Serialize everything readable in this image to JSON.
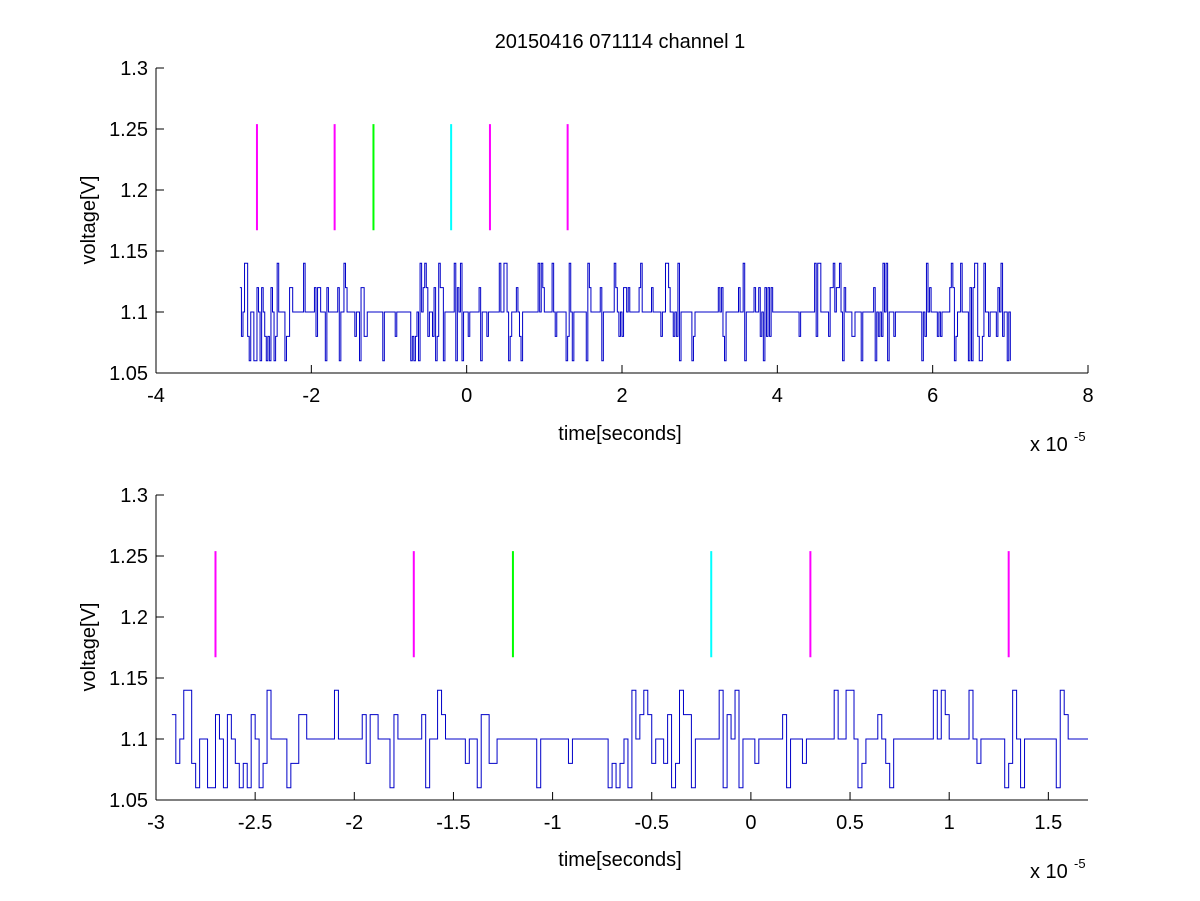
{
  "chart_data": [
    {
      "type": "line",
      "title": "20150416 071114 channel 1",
      "xlabel": "time[seconds]",
      "ylabel": "voltage[V]",
      "x_exponent_label": "x 10",
      "x_exponent_power": "-5",
      "xlim": [
        -4,
        8
      ],
      "ylim": [
        1.05,
        1.3
      ],
      "x_scale": 1e-05,
      "xticks": [
        -4,
        -2,
        0,
        2,
        4,
        6,
        8
      ],
      "xtick_labels": [
        "-4",
        "-2",
        "0",
        "2",
        "4",
        "6",
        "8"
      ],
      "yticks": [
        1.05,
        1.1,
        1.15,
        1.2,
        1.25,
        1.3
      ],
      "ytick_labels": [
        "1.05",
        "1.1",
        "1.15",
        "1.2",
        "1.25",
        "1.3"
      ],
      "grid": false,
      "signal": {
        "color": "#0000c8",
        "t_start": -2.92,
        "t_end": 7.0,
        "sample_step": 0.02,
        "levels": [
          1.06,
          1.08,
          1.1,
          1.12,
          1.14
        ],
        "baseline": 1.1
      },
      "markers": [
        {
          "x": -2.7,
          "color": "#ff00ff",
          "y_range": [
            1.167,
            1.254
          ]
        },
        {
          "x": -1.7,
          "color": "#ff00ff",
          "y_range": [
            1.167,
            1.254
          ]
        },
        {
          "x": -1.2,
          "color": "#00ff00",
          "y_range": [
            1.167,
            1.254
          ]
        },
        {
          "x": -0.2,
          "color": "#00ffff",
          "y_range": [
            1.167,
            1.254
          ]
        },
        {
          "x": 0.3,
          "color": "#ff00ff",
          "y_range": [
            1.167,
            1.254
          ]
        },
        {
          "x": 1.3,
          "color": "#ff00ff",
          "y_range": [
            1.167,
            1.254
          ]
        }
      ]
    },
    {
      "type": "line",
      "title": "",
      "xlabel": "time[seconds]",
      "ylabel": "voltage[V]",
      "x_exponent_label": "x 10",
      "x_exponent_power": "-5",
      "xlim": [
        -3.0,
        1.7
      ],
      "ylim": [
        1.05,
        1.3
      ],
      "x_scale": 1e-05,
      "xticks": [
        -3,
        -2.5,
        -2,
        -1.5,
        -1,
        -0.5,
        0,
        0.5,
        1,
        1.5
      ],
      "xtick_labels": [
        "-3",
        "-2.5",
        "-2",
        "-1.5",
        "-1",
        "-0.5",
        "0",
        "0.5",
        "1",
        "1.5"
      ],
      "yticks": [
        1.05,
        1.1,
        1.15,
        1.2,
        1.25,
        1.3
      ],
      "ytick_labels": [
        "1.05",
        "1.1",
        "1.15",
        "1.2",
        "1.25",
        "1.3"
      ],
      "grid": false,
      "signal": {
        "color": "#0000c8",
        "t_start": -2.92,
        "t_end": 1.7,
        "sample_step": 0.02,
        "levels": [
          1.06,
          1.08,
          1.1,
          1.12,
          1.14
        ],
        "baseline": 1.1
      },
      "markers": [
        {
          "x": -2.7,
          "color": "#ff00ff",
          "y_range": [
            1.167,
            1.254
          ]
        },
        {
          "x": -1.7,
          "color": "#ff00ff",
          "y_range": [
            1.167,
            1.254
          ]
        },
        {
          "x": -1.2,
          "color": "#00ff00",
          "y_range": [
            1.167,
            1.254
          ]
        },
        {
          "x": -0.2,
          "color": "#00ffff",
          "y_range": [
            1.167,
            1.254
          ]
        },
        {
          "x": 0.3,
          "color": "#ff00ff",
          "y_range": [
            1.167,
            1.254
          ]
        },
        {
          "x": 1.3,
          "color": "#ff00ff",
          "y_range": [
            1.167,
            1.254
          ]
        }
      ]
    }
  ]
}
